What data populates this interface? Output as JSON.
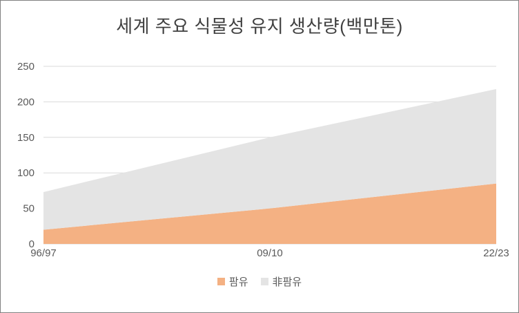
{
  "chart_data": {
    "type": "area",
    "stacked": true,
    "title": "세계 주요 식물성 유지 생산량(백만톤)",
    "categories": [
      "96/97",
      "09/10",
      "22/23"
    ],
    "series": [
      {
        "name": "팜유",
        "color": "#F4B183",
        "values": [
          20,
          50,
          85
        ]
      },
      {
        "name": "非팜유",
        "color": "#E4E4E4",
        "values": [
          53,
          100,
          133
        ]
      }
    ],
    "totals": [
      73,
      150,
      218
    ],
    "ylim": [
      0,
      250
    ],
    "yticks": [
      0,
      50,
      100,
      150,
      200,
      250
    ],
    "grid": "horizontal",
    "legend_position": "bottom",
    "text_color": "#595959",
    "title_color": "#404040",
    "gridline_color": "#D9D9D9"
  }
}
